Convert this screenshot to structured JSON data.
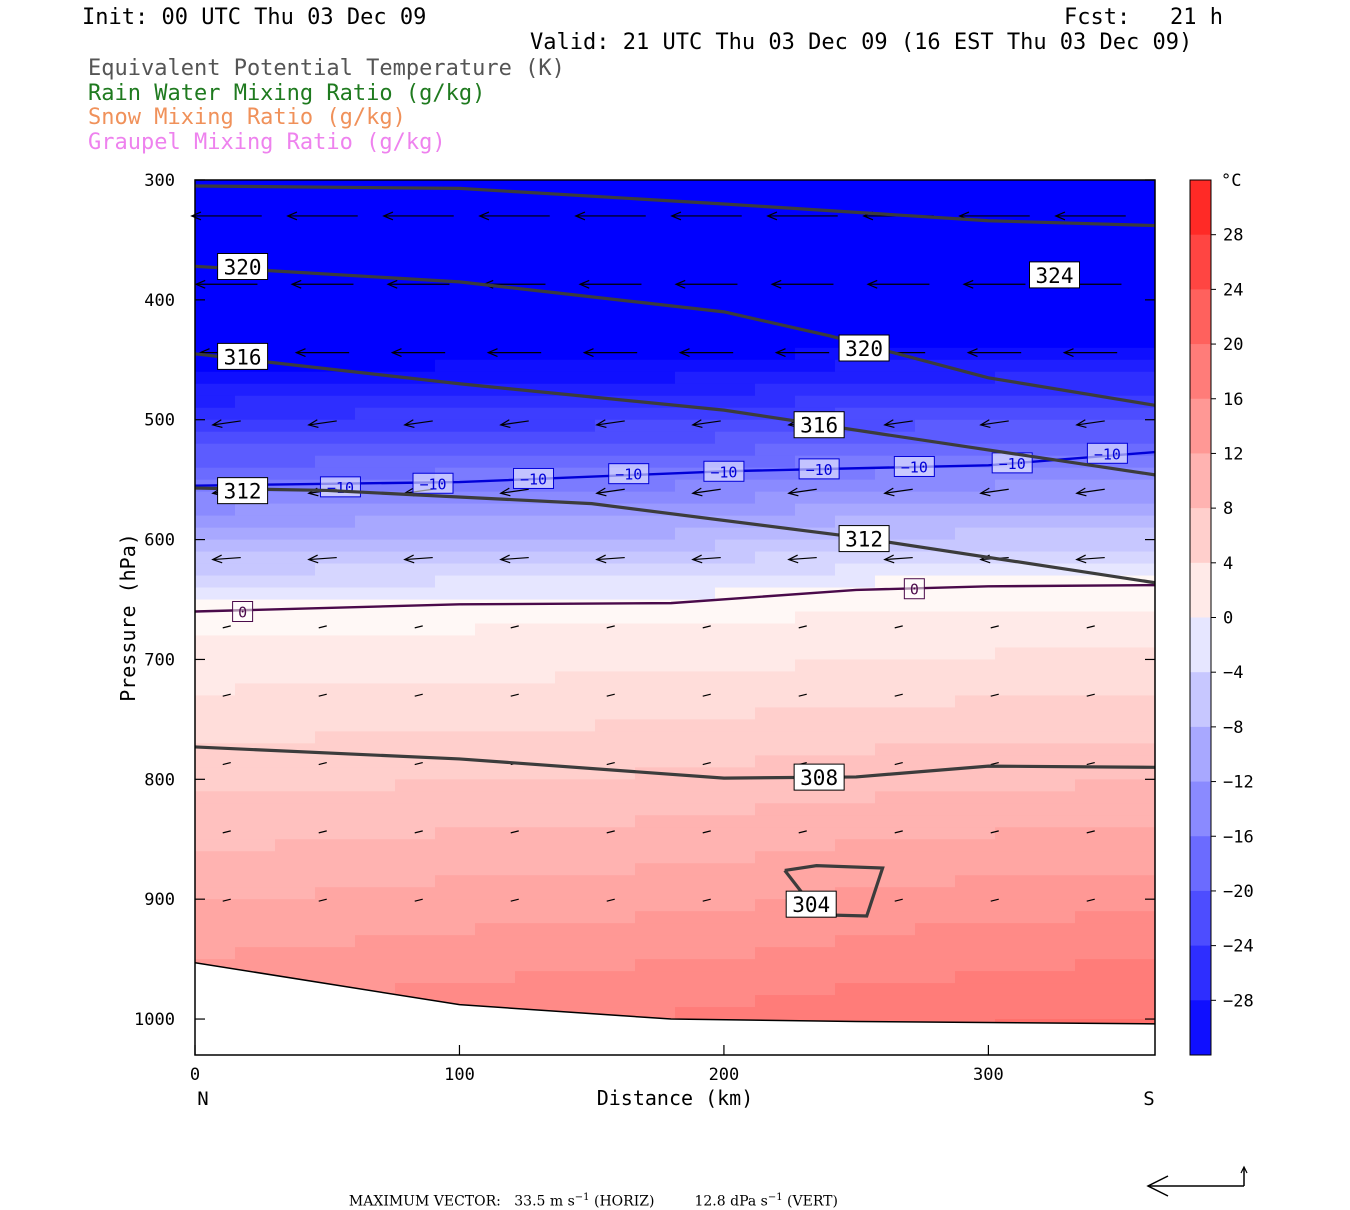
{
  "header": {
    "init": "Init: 00 UTC Thu 03 Dec 09",
    "fcst": "Fcst:   21 h",
    "valid": "Valid: 21 UTC Thu 03 Dec 09 (16 EST Thu 03 Dec 09)"
  },
  "legend": [
    {
      "text": "Equivalent Potential Temperature (K)",
      "color": "#555555"
    },
    {
      "text": "Rain Water Mixing Ratio (g/kg)",
      "color": "#1f7a1f"
    },
    {
      "text": "Snow Mixing Ratio (g/kg)",
      "color": "#f0915a"
    },
    {
      "text": "Graupel Mixing Ratio (g/kg)",
      "color": "#ee82ee"
    }
  ],
  "chart_data": {
    "type": "cross-section",
    "xlabel": "Distance (km)",
    "ylabel": "Pressure (hPa)",
    "xlim": [
      0,
      363
    ],
    "ylim": [
      1030,
      300
    ],
    "x_ticks": [
      0,
      100,
      200,
      300
    ],
    "y_ticks": [
      300,
      400,
      500,
      600,
      700,
      800,
      900,
      1000
    ],
    "x_end_labels": {
      "left": "N",
      "right": "S"
    },
    "colorbar": {
      "unit": "°C",
      "min": -32,
      "max": 32,
      "step": 4,
      "tick_labels": [
        "28",
        "24",
        "20",
        "16",
        "12",
        "8",
        "4",
        "0",
        "−4",
        "−8",
        "−12",
        "−16",
        "−20",
        "−24",
        "−28"
      ],
      "tick_values": [
        28,
        24,
        20,
        16,
        12,
        8,
        4,
        0,
        -4,
        -8,
        -12,
        -16,
        -20,
        -24,
        -28
      ]
    },
    "theta_e_contours": [
      {
        "label": "324",
        "points": [
          [
            0,
            305
          ],
          [
            100,
            307
          ],
          [
            200,
            320
          ],
          [
            300,
            334
          ],
          [
            363,
            338
          ]
        ],
        "label_at": [
          325,
          380
        ]
      },
      {
        "label": "320",
        "points": [
          [
            0,
            372
          ],
          [
            100,
            385
          ],
          [
            200,
            410
          ],
          [
            240,
            430
          ],
          [
            300,
            465
          ],
          [
            363,
            488
          ]
        ],
        "label_at": [
          253,
          441
        ]
      },
      {
        "label": "316",
        "points": [
          [
            0,
            445
          ],
          [
            100,
            470
          ],
          [
            200,
            492
          ],
          [
            260,
            512
          ],
          [
            363,
            546
          ]
        ],
        "label_at": [
          236,
          505
        ]
      },
      {
        "label": "312",
        "points": [
          [
            0,
            557
          ],
          [
            50,
            559
          ],
          [
            150,
            570
          ],
          [
            250,
            598
          ],
          [
            363,
            636
          ]
        ],
        "label_at": [
          253,
          600
        ]
      },
      {
        "label": "308",
        "points": [
          [
            0,
            773
          ],
          [
            100,
            783
          ],
          [
            200,
            799
          ],
          [
            250,
            798
          ],
          [
            300,
            789
          ],
          [
            363,
            790
          ]
        ],
        "label_at": [
          236,
          799
        ]
      },
      {
        "label": "304",
        "points": [
          [
            223,
            876
          ],
          [
            235,
            872
          ],
          [
            260,
            874
          ],
          [
            254,
            914
          ],
          [
            236,
            913
          ],
          [
            223,
            876
          ]
        ],
        "label_at": [
          233,
          905
        ]
      }
    ],
    "theta_e_extra_labels": [
      {
        "label": "320",
        "at": [
          18,
          373
        ]
      },
      {
        "label": "316",
        "at": [
          18,
          448
        ]
      },
      {
        "label": "312",
        "at": [
          18,
          560
        ]
      }
    ],
    "isotherms": [
      {
        "label": "−10",
        "points": [
          [
            0,
            555
          ],
          [
            100,
            552
          ],
          [
            200,
            543
          ],
          [
            300,
            538
          ],
          [
            363,
            527
          ]
        ],
        "color": "#0000d8",
        "label_positions": [
          [
            55,
            556
          ],
          [
            90,
            553
          ],
          [
            128,
            549
          ],
          [
            164,
            545
          ],
          [
            200,
            543
          ],
          [
            236,
            541
          ],
          [
            272,
            539
          ],
          [
            309,
            536
          ],
          [
            345,
            528
          ]
        ]
      },
      {
        "label": "0",
        "points": [
          [
            0,
            660
          ],
          [
            100,
            654
          ],
          [
            180,
            653
          ],
          [
            250,
            642
          ],
          [
            300,
            639
          ],
          [
            363,
            638
          ]
        ],
        "color": "#4a0a4a",
        "label_positions": [
          [
            18,
            660
          ],
          [
            272,
            641
          ]
        ]
      }
    ],
    "ground_pressure": [
      [
        0,
        953
      ],
      [
        100,
        988
      ],
      [
        180,
        1000
      ],
      [
        250,
        1002
      ],
      [
        363,
        1004
      ]
    ],
    "footer": {
      "label": "MAXIMUM VECTOR:",
      "horiz": "33.5 m s",
      "horiz_unit": "(HORIZ)",
      "vert": "12.8 dPa s",
      "vert_unit": "(VERT)",
      "exponent": "−1"
    }
  }
}
